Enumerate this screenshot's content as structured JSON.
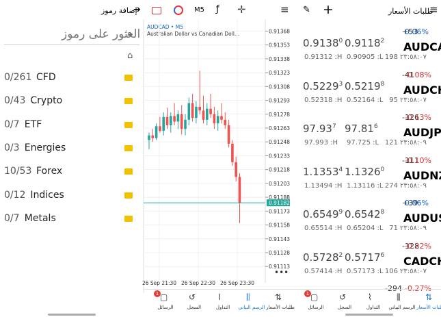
{
  "top_bar": {
    "add_symbols": "إضافة رموز",
    "timeframe": "M5"
  },
  "symbols_panel": {
    "search_placeholder": "العثور على رموز",
    "groups": [
      {
        "count": "0/261",
        "name": "CFD"
      },
      {
        "count": "0/43",
        "name": "Crypto"
      },
      {
        "count": "0/7",
        "name": "ETF"
      },
      {
        "count": "0/3",
        "name": "Energies"
      },
      {
        "count": "10/53",
        "name": "Forex"
      },
      {
        "count": "0/12",
        "name": "Indices"
      },
      {
        "count": "0/7",
        "name": "Metals"
      }
    ]
  },
  "chart_data": {
    "type": "candlestick",
    "title": "AUDCAD • M5",
    "subtitle": "Australian Dollar vs Canadian Doll...",
    "x": [
      "26 Sep 21:30",
      "26 Sep 22:30",
      "26 Sep 23:30"
    ],
    "ylim": [
      0.91105,
      0.91375
    ],
    "yticks": [
      0.91368,
      0.91353,
      0.91338,
      0.91323,
      0.91308,
      0.91293,
      0.91278,
      0.91263,
      0.91248,
      0.91233,
      0.91218,
      0.91203,
      0.91188,
      0.91173,
      0.91158,
      0.91143,
      0.91128,
      0.91113
    ],
    "current_price": 0.91182,
    "up_color": "#26a69a",
    "down_color": "#ef5350",
    "candles": [
      [
        0.9125,
        0.91258,
        0.9124,
        0.91255
      ],
      [
        0.91255,
        0.91262,
        0.91248,
        0.91252
      ],
      [
        0.91252,
        0.91268,
        0.9125,
        0.91265
      ],
      [
        0.91265,
        0.91275,
        0.91258,
        0.9126
      ],
      [
        0.9126,
        0.9128,
        0.91255,
        0.91275
      ],
      [
        0.91275,
        0.91285,
        0.91262,
        0.91266
      ],
      [
        0.91266,
        0.9128,
        0.91258,
        0.91276
      ],
      [
        0.91276,
        0.9129,
        0.91266,
        0.9127
      ],
      [
        0.9127,
        0.91282,
        0.91262,
        0.91278
      ],
      [
        0.91278,
        0.91288,
        0.91256,
        0.91262
      ],
      [
        0.91262,
        0.91278,
        0.91255,
        0.91272
      ],
      [
        0.91272,
        0.91296,
        0.91266,
        0.9129
      ],
      [
        0.9129,
        0.913,
        0.9127,
        0.91274
      ],
      [
        0.91274,
        0.91292,
        0.91268,
        0.91286
      ],
      [
        0.91286,
        0.91325,
        0.91278,
        0.91282
      ],
      [
        0.91282,
        0.91298,
        0.91268,
        0.91272
      ],
      [
        0.91272,
        0.9129,
        0.91266,
        0.91284
      ],
      [
        0.91284,
        0.913,
        0.91274,
        0.91278
      ],
      [
        0.91278,
        0.91286,
        0.91262,
        0.91268
      ],
      [
        0.91268,
        0.91282,
        0.9126,
        0.91276
      ],
      [
        0.91276,
        0.9129,
        0.91268,
        0.91272
      ],
      [
        0.91272,
        0.9128,
        0.91262,
        0.91266
      ],
      [
        0.91266,
        0.91272,
        0.91242,
        0.91246
      ],
      [
        0.91246,
        0.9125,
        0.91222,
        0.91226
      ],
      [
        0.91226,
        0.91232,
        0.91205,
        0.9121
      ],
      [
        0.9121,
        0.91214,
        0.9116,
        0.91182
      ]
    ]
  },
  "quotes_panel": {
    "title": "طلبات الأسعار",
    "quotes": [
      {
        "symbol": "AUDCAD",
        "points": "+53",
        "change": "0.06%",
        "bid": "0.9138",
        "bid_last": "0",
        "ask": "0.9118",
        "ask_last": "2",
        "high": "0.91312 :H",
        "low": "0.90905 :L",
        "spread": "198",
        "time": "٢٣:٥٨:٠٧"
      },
      {
        "symbol": "AUDCHF",
        "points": "-41",
        "change": "-0.08%",
        "bid": "0.5229",
        "bid_last": "3",
        "ask": "0.5219",
        "ask_last": "8",
        "high": "0.52318 :H",
        "low": "0.52164 :L",
        "spread": "95",
        "time": "٢٣:٥٨:٠٧"
      },
      {
        "symbol": "AUDJPY",
        "points": "-126",
        "change": "-0.13%",
        "bid": "97.93",
        "bid_last": "7",
        "ask": "97.81",
        "ask_last": "6",
        "high": "97.993 :H",
        "low": "97.725 :L",
        "spread": "121",
        "time": "٢٣:٥٨:٠٩"
      },
      {
        "symbol": "AUDNZD",
        "points": "-111",
        "change": "-0.10%",
        "bid": "1.1353",
        "bid_last": "4",
        "ask": "1.1326",
        "ask_last": "0",
        "high": "1.13494 :H",
        "low": "1.13116 :L",
        "spread": "274",
        "time": "٢٣:٥٨:٠٩"
      },
      {
        "symbol": "AUDUSD",
        "points": "+39",
        "change": "0.06%",
        "bid": "0.6549",
        "bid_last": "9",
        "ask": "0.6542",
        "ask_last": "8",
        "high": "0.65514 :H",
        "low": "0.65204 :L",
        "spread": "71",
        "time": "٢٣:٥٨:٠٩"
      },
      {
        "symbol": "CADCHF",
        "points": "-128",
        "change": "-0.22%",
        "bid": "0.5728",
        "bid_last": "2",
        "ask": "0.5717",
        "ask_last": "6",
        "high": "0.57414 :H",
        "low": "0.57173 :L",
        "spread": "106",
        "time": "٢٣:٥٨:٠٧"
      }
    ],
    "partial": {
      "points": "-294",
      "change": "-0.27%"
    }
  },
  "nav": {
    "badge": "1",
    "items": [
      "الرسائل",
      "السجل",
      "التداول",
      "الرسم البياني",
      "طلبات الأسعار"
    ]
  }
}
